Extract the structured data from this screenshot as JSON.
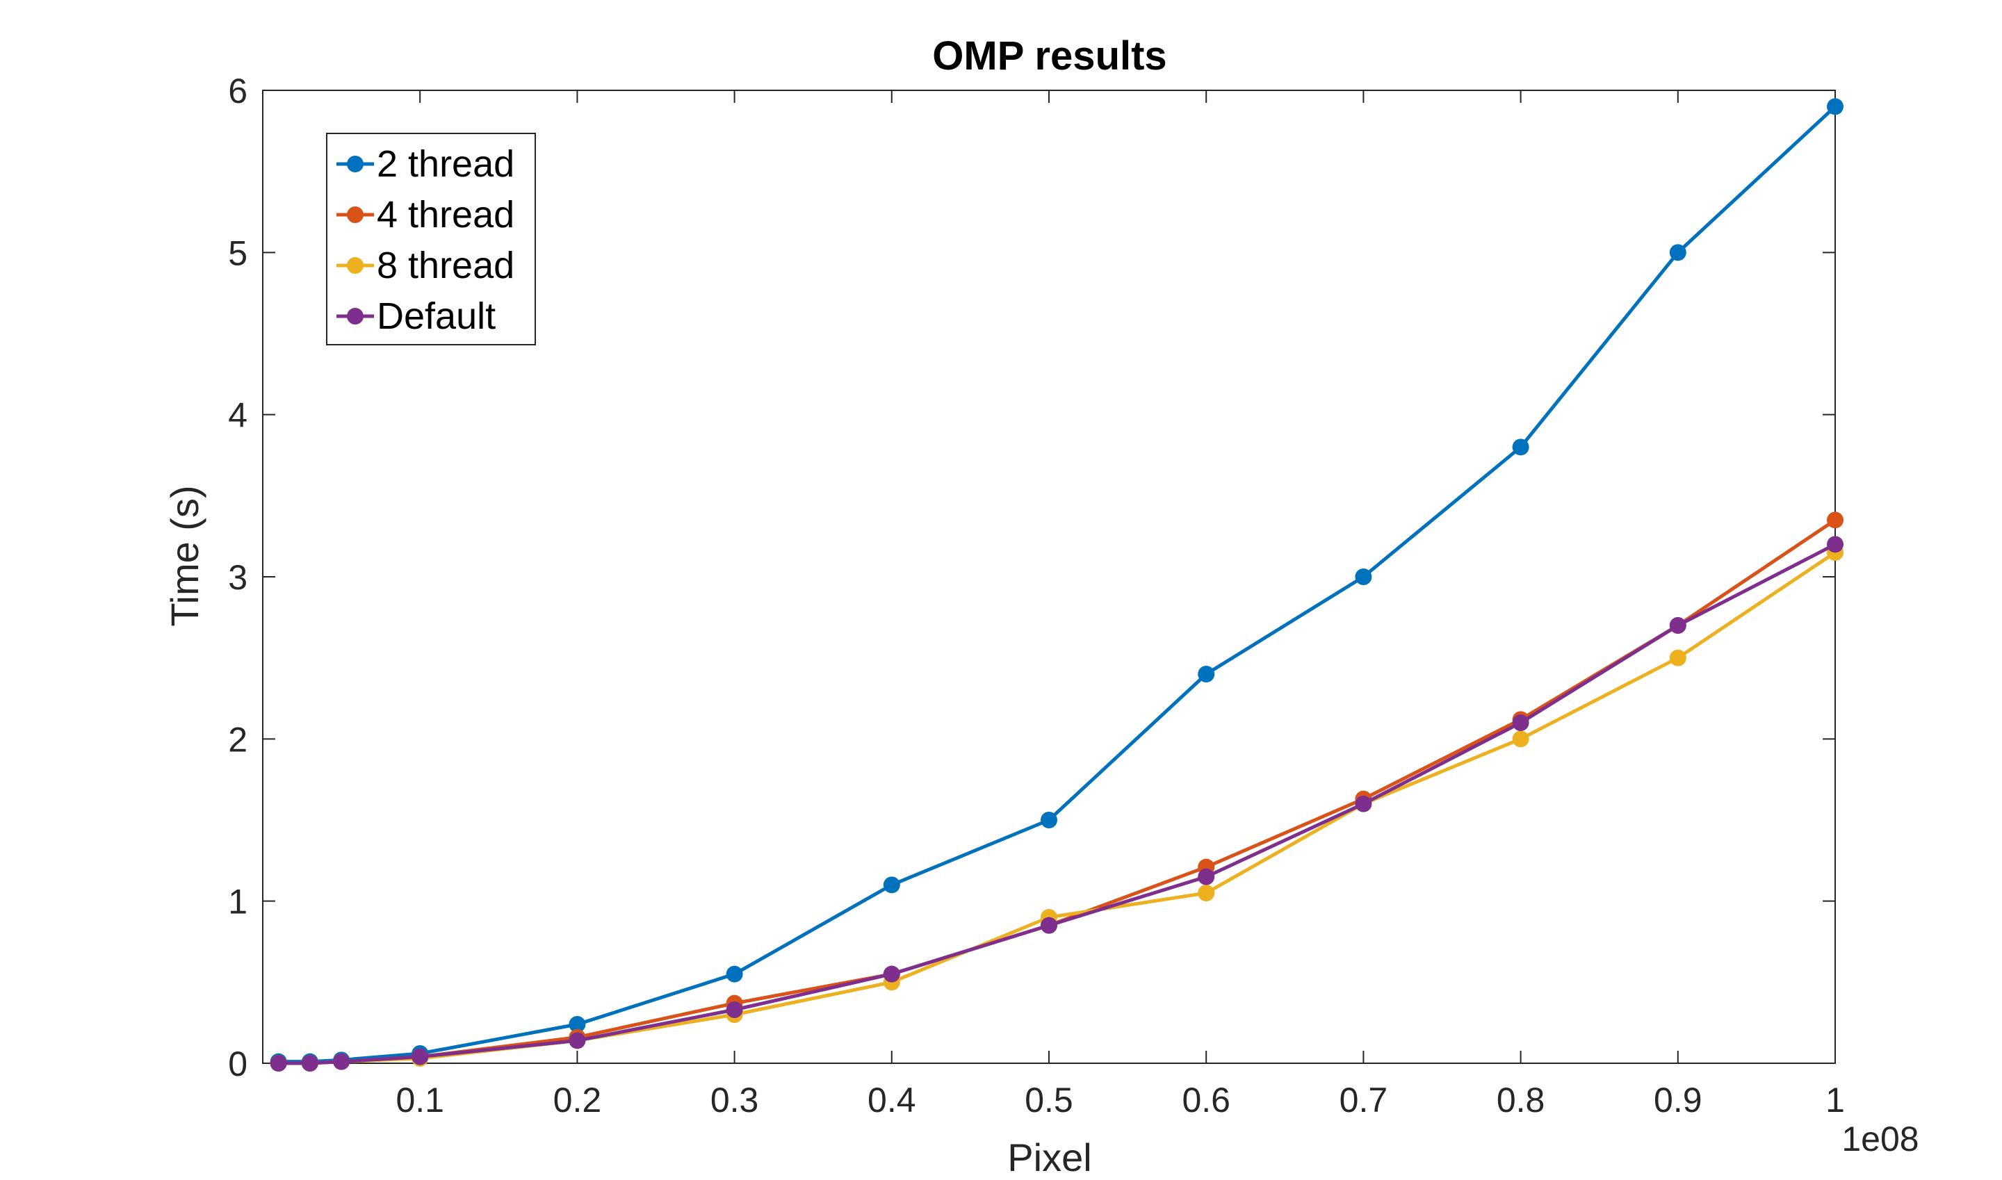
{
  "chart_data": {
    "type": "line",
    "title": "OMP results",
    "xlabel": "Pixel",
    "ylabel": "Time (s)",
    "x_multiplier_label": "1e08",
    "xlim": [
      0,
      1
    ],
    "ylim": [
      0,
      6
    ],
    "xticks": [
      0.1,
      0.2,
      0.3,
      0.4,
      0.5,
      0.6,
      0.7,
      0.8,
      0.9,
      1
    ],
    "xtick_labels": [
      "0.1",
      "0.2",
      "0.3",
      "0.4",
      "0.5",
      "0.6",
      "0.7",
      "0.8",
      "0.9",
      "1"
    ],
    "yticks": [
      0,
      1,
      2,
      3,
      4,
      5,
      6
    ],
    "ytick_labels": [
      "0",
      "1",
      "2",
      "3",
      "4",
      "5",
      "6"
    ],
    "grid": false,
    "legend_position": "top-left",
    "x": [
      0.01,
      0.03,
      0.05,
      0.1,
      0.2,
      0.3,
      0.4,
      0.5,
      0.6,
      0.7,
      0.8,
      0.9,
      1.0
    ],
    "series": [
      {
        "name": "2 thread",
        "color": "#0072BD",
        "values": [
          0.01,
          0.01,
          0.02,
          0.06,
          0.24,
          0.55,
          1.1,
          1.5,
          2.4,
          3.0,
          3.8,
          5.0,
          5.9
        ]
      },
      {
        "name": "4 thread",
        "color": "#D95319",
        "values": [
          0.0,
          0.0,
          0.01,
          0.04,
          0.16,
          0.37,
          0.55,
          0.85,
          1.21,
          1.63,
          2.12,
          2.7,
          3.35
        ]
      },
      {
        "name": "8 thread",
        "color": "#EDB120",
        "values": [
          0.0,
          0.0,
          0.01,
          0.03,
          0.14,
          0.3,
          0.5,
          0.9,
          1.05,
          1.6,
          2.0,
          2.5,
          3.15
        ]
      },
      {
        "name": "Default",
        "color": "#7E2F8E",
        "values": [
          0.0,
          0.0,
          0.01,
          0.04,
          0.14,
          0.33,
          0.55,
          0.85,
          1.15,
          1.6,
          2.1,
          2.7,
          3.2
        ]
      }
    ]
  }
}
